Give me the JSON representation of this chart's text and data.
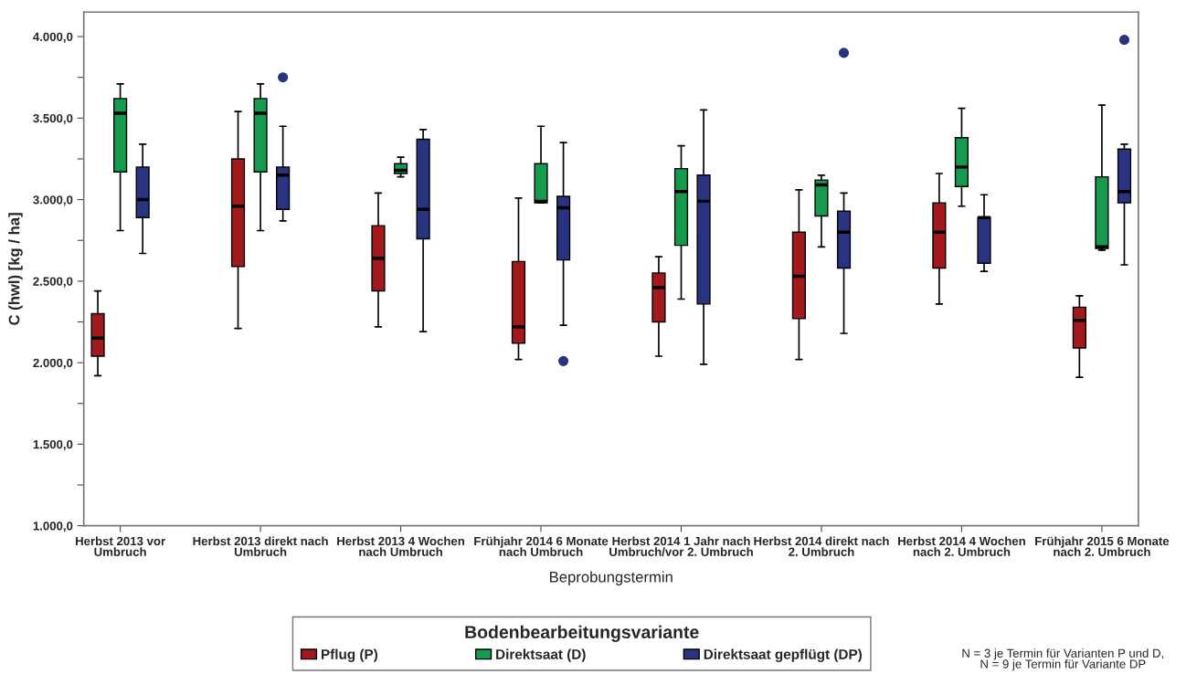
{
  "chart_data": {
    "type": "box",
    "xlabel": "Beprobungstermin",
    "ylabel": "C (hwl) [kg / ha]",
    "legend_title": "Bodenbearbeitungsvariante",
    "categories": [
      "Herbst 2013 vor\nUmbruch",
      "Herbst 2013 direkt nach\nUmbruch",
      "Herbst 2013 4 Wochen\nnach Umbruch",
      "Frühjahr 2014 6 Monate\nnach Umbruch",
      "Herbst 2014 1 Jahr nach\nUmbruch/vor 2. Umbruch",
      "Herbst 2014 direkt nach\n2. Umbruch",
      "Herbst 2014 4 Wochen\nnach 2. Umbruch",
      "Frühjahr 2015 6 Monate\nnach 2. Umbruch"
    ],
    "ylim": [
      1000,
      4150
    ],
    "yticks": [
      {
        "value": 1000,
        "label": "1.000,0"
      },
      {
        "value": 1250,
        "label": null
      },
      {
        "value": 1500,
        "label": "1.500,0"
      },
      {
        "value": 1750,
        "label": null
      },
      {
        "value": 2000,
        "label": "2.000,0"
      },
      {
        "value": 2250,
        "label": null
      },
      {
        "value": 2500,
        "label": "2.500,0"
      },
      {
        "value": 2750,
        "label": null
      },
      {
        "value": 3000,
        "label": "3.000,0"
      },
      {
        "value": 3250,
        "label": null
      },
      {
        "value": 3500,
        "label": "3.500,0"
      },
      {
        "value": 3750,
        "label": null
      },
      {
        "value": 4000,
        "label": "4.000,0"
      }
    ],
    "grid": false,
    "legend": "bottom",
    "series": [
      {
        "name": "Pflug (P)",
        "color": "#a31a1d",
        "boxes": [
          {
            "low": 1920,
            "q1": 2040,
            "median": 2150,
            "q3": 2300,
            "high": 2440
          },
          {
            "low": 2210,
            "q1": 2590,
            "median": 2960,
            "q3": 3250,
            "high": 3540
          },
          {
            "low": 2220,
            "q1": 2440,
            "median": 2640,
            "q3": 2840,
            "high": 3040
          },
          {
            "low": 2020,
            "q1": 2120,
            "median": 2220,
            "q3": 2620,
            "high": 3010
          },
          {
            "low": 2040,
            "q1": 2250,
            "median": 2460,
            "q3": 2550,
            "high": 2650
          },
          {
            "low": 2020,
            "q1": 2270,
            "median": 2530,
            "q3": 2800,
            "high": 3060
          },
          {
            "low": 2360,
            "q1": 2580,
            "median": 2800,
            "q3": 2980,
            "high": 3160
          },
          {
            "low": 1910,
            "q1": 2090,
            "median": 2260,
            "q3": 2340,
            "high": 2410
          }
        ]
      },
      {
        "name": "Direktsaat (D)",
        "color": "#159a4e",
        "boxes": [
          {
            "low": 2810,
            "q1": 3170,
            "median": 3530,
            "q3": 3620,
            "high": 3710
          },
          {
            "low": 2810,
            "q1": 3170,
            "median": 3530,
            "q3": 3620,
            "high": 3710
          },
          {
            "low": 3140,
            "q1": 3160,
            "median": 3180,
            "q3": 3220,
            "high": 3260
          },
          {
            "low": 2980,
            "q1": 2980,
            "median": 2990,
            "q3": 3220,
            "high": 3450
          },
          {
            "low": 2390,
            "q1": 2720,
            "median": 3050,
            "q3": 3190,
            "high": 3330
          },
          {
            "low": 2710,
            "q1": 2900,
            "median": 3090,
            "q3": 3120,
            "high": 3150
          },
          {
            "low": 2960,
            "q1": 3080,
            "median": 3200,
            "q3": 3380,
            "high": 3560
          },
          {
            "low": 2690,
            "q1": 2700,
            "median": 2710,
            "q3": 3140,
            "high": 3580
          }
        ]
      },
      {
        "name": "Direktsaat gepflügt (DP)",
        "color": "#29337f",
        "boxes": [
          {
            "low": 2670,
            "q1": 2890,
            "median": 3000,
            "q3": 3200,
            "high": 3340
          },
          {
            "low": 2870,
            "q1": 2940,
            "median": 3150,
            "q3": 3200,
            "high": 3450,
            "outliers": [
              3750
            ]
          },
          {
            "low": 2190,
            "q1": 2760,
            "median": 2940,
            "q3": 3370,
            "high": 3430
          },
          {
            "low": 2230,
            "q1": 2630,
            "median": 2950,
            "q3": 3020,
            "high": 3350,
            "outliers": [
              2010
            ]
          },
          {
            "low": 1990,
            "q1": 2360,
            "median": 2990,
            "q3": 3150,
            "high": 3550
          },
          {
            "low": 2180,
            "q1": 2580,
            "median": 2800,
            "q3": 2930,
            "high": 3040,
            "outliers": [
              3900
            ]
          },
          {
            "low": 2560,
            "q1": 2610,
            "median": 2890,
            "q3": 2890,
            "high": 3030
          },
          {
            "low": 2600,
            "q1": 2980,
            "median": 3050,
            "q3": 3310,
            "high": 3340,
            "outliers": [
              3980
            ]
          }
        ]
      }
    ],
    "annotations": [
      "N = 3 je Termin für Varianten P und D,\nN = 9 je Termin für Variante DP"
    ]
  }
}
